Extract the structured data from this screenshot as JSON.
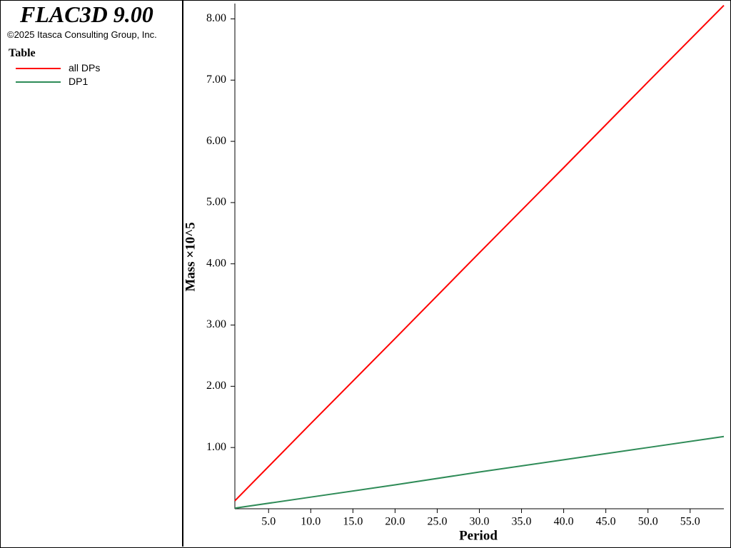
{
  "header": {
    "title": "FLAC3D 9.00",
    "copyright": "©2025 Itasca Consulting Group, Inc."
  },
  "chart_data": {
    "type": "line",
    "legend_title": "Table",
    "x_label": "Period",
    "y_label": "Mass ×10^5",
    "x": [
      1,
      10,
      20,
      30,
      40,
      50,
      59
    ],
    "series": [
      {
        "name": "all DPs",
        "color": "#ff0000",
        "values": [
          0.13,
          1.39,
          2.78,
          4.18,
          5.57,
          6.97,
          8.22
        ]
      },
      {
        "name": "DP1",
        "color": "#2e8b57",
        "values": [
          0.01,
          0.19,
          0.39,
          0.6,
          0.8,
          1.0,
          1.18
        ]
      }
    ],
    "xlim": [
      1,
      59
    ],
    "ylim": [
      0,
      8.25
    ],
    "xticks": [
      {
        "value": 5,
        "label": "5.0"
      },
      {
        "value": 10,
        "label": "10.0"
      },
      {
        "value": 15,
        "label": "15.0"
      },
      {
        "value": 20,
        "label": "20.0"
      },
      {
        "value": 25,
        "label": "25.0"
      },
      {
        "value": 30,
        "label": "30.0"
      },
      {
        "value": 35,
        "label": "35.0"
      },
      {
        "value": 40,
        "label": "40.0"
      },
      {
        "value": 45,
        "label": "45.0"
      },
      {
        "value": 50,
        "label": "50.0"
      },
      {
        "value": 55,
        "label": "55.0"
      }
    ],
    "yticks": [
      {
        "value": 1,
        "label": "1.00"
      },
      {
        "value": 2,
        "label": "2.00"
      },
      {
        "value": 3,
        "label": "3.00"
      },
      {
        "value": 4,
        "label": "4.00"
      },
      {
        "value": 5,
        "label": "5.00"
      },
      {
        "value": 6,
        "label": "6.00"
      },
      {
        "value": 7,
        "label": "7.00"
      },
      {
        "value": 8,
        "label": "8.00"
      }
    ]
  }
}
